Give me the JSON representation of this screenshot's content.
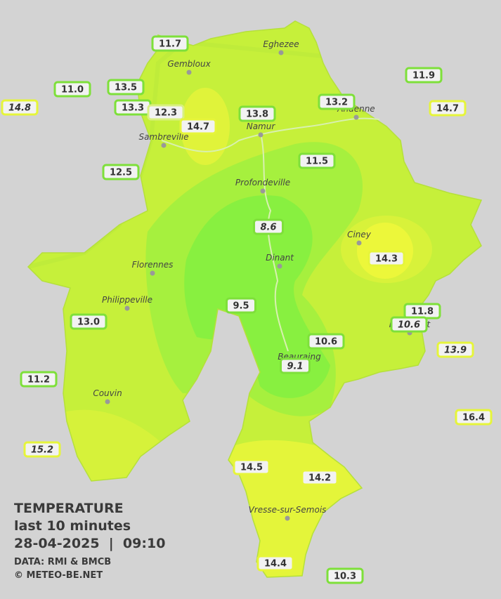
{
  "legend": {
    "title": "TEMPERATURE",
    "period": "last 10 minutes",
    "timestamp": "28-04-2025  |  09:10",
    "source": "DATA: RMI & BMCB",
    "credit": "© METEO-BE.NET"
  },
  "cities": [
    "Eghezee",
    "Gembloux",
    "Andenne",
    "Namur",
    "Sambreville",
    "Profondeville",
    "Ciney",
    "Dinant",
    "Florennes",
    "Philippeville",
    "Rochefort",
    "Beauraing",
    "Couvin",
    "Vresse-sur-Semois"
  ],
  "stations": [
    {
      "value": "11.7",
      "border": "#7ee03a",
      "italic": false
    },
    {
      "value": "11.0",
      "border": "#7ee03a",
      "italic": false
    },
    {
      "value": "13.5",
      "border": "#7ee03a",
      "italic": false
    },
    {
      "value": "14.8",
      "border": "#e6f53a",
      "italic": true
    },
    {
      "value": "13.3",
      "border": "#7ee03a",
      "italic": false
    },
    {
      "value": "12.3",
      "border": "#d8f080",
      "italic": false
    },
    {
      "value": "14.7",
      "border": "#e6f53a",
      "italic": false
    },
    {
      "value": "13.8",
      "border": "#7ee03a",
      "italic": false
    },
    {
      "value": "13.2",
      "border": "#7ee03a",
      "italic": false
    },
    {
      "value": "11.9",
      "border": "#7ee03a",
      "italic": false
    },
    {
      "value": "14.7",
      "border": "#e6f53a",
      "italic": false
    },
    {
      "value": "12.5",
      "border": "#7ee03a",
      "italic": false
    },
    {
      "value": "11.5",
      "border": "#7ee03a",
      "italic": false
    },
    {
      "value": "8.6",
      "border": "#7ee03a",
      "italic": true
    },
    {
      "value": "14.3",
      "border": "#e6f53a",
      "italic": false
    },
    {
      "value": "9.5",
      "border": "#7ee03a",
      "italic": false
    },
    {
      "value": "11.8",
      "border": "#7ee03a",
      "italic": false
    },
    {
      "value": "10.6",
      "border": "#7ee03a",
      "italic": true
    },
    {
      "value": "13.9",
      "border": "#e6f53a",
      "italic": true
    },
    {
      "value": "13.0",
      "border": "#7ee03a",
      "italic": false
    },
    {
      "value": "10.6",
      "border": "#7ee03a",
      "italic": false
    },
    {
      "value": "9.1",
      "border": "#7ee03a",
      "italic": true
    },
    {
      "value": "11.2",
      "border": "#7ee03a",
      "italic": false
    },
    {
      "value": "16.4",
      "border": "#e6f53a",
      "italic": false
    },
    {
      "value": "15.2",
      "border": "#e6f53a",
      "italic": true
    },
    {
      "value": "14.5",
      "border": "#e6f53a",
      "italic": false
    },
    {
      "value": "14.2",
      "border": "#e6f53a",
      "italic": false
    },
    {
      "value": "14.4",
      "border": "#e6f53a",
      "italic": false
    },
    {
      "value": "10.3",
      "border": "#7ee03a",
      "italic": false
    }
  ]
}
